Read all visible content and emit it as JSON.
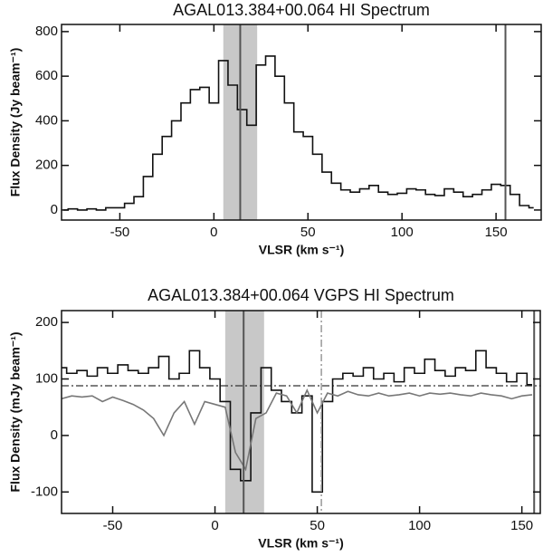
{
  "chart_data": [
    {
      "type": "line",
      "title": "AGAL013.384+00.064 HI Spectrum",
      "xlabel": "VLSR (km s⁻¹)",
      "ylabel": "Flux Density (Jy beam⁻¹)",
      "xlim": [
        -81,
        174
      ],
      "ylim": [
        -45,
        832
      ],
      "xticks": [
        -50,
        0,
        50,
        100,
        150
      ],
      "yticks": [
        0,
        200,
        400,
        600,
        800
      ],
      "shaded_region": [
        5,
        23
      ],
      "vlines": [
        14,
        155
      ],
      "x": [
        -80,
        -75,
        -70,
        -65,
        -60,
        -55,
        -50,
        -45,
        -40,
        -35,
        -30,
        -25,
        -20,
        -15,
        -10,
        -5,
        0,
        5,
        10,
        15,
        20,
        25,
        30,
        35,
        40,
        45,
        50,
        55,
        60,
        65,
        70,
        75,
        80,
        85,
        90,
        95,
        100,
        105,
        110,
        115,
        120,
        125,
        130,
        135,
        140,
        145,
        150,
        155,
        160,
        165,
        170
      ],
      "series": [
        {
          "color": "#111111",
          "style": "steps",
          "values": [
            0,
            5,
            0,
            5,
            0,
            10,
            10,
            30,
            60,
            150,
            250,
            330,
            400,
            480,
            540,
            550,
            480,
            670,
            560,
            450,
            380,
            650,
            690,
            600,
            480,
            350,
            330,
            250,
            170,
            120,
            90,
            80,
            95,
            110,
            80,
            70,
            75,
            95,
            90,
            70,
            65,
            95,
            80,
            60,
            70,
            90,
            115,
            110,
            70,
            20,
            10
          ]
        }
      ]
    },
    {
      "type": "line",
      "title": "AGAL013.384+00.064  VGPS HI Spectrum",
      "xlabel": "VLSR (km s⁻¹)",
      "ylabel": "Flux Density (mJy beam⁻¹)",
      "xlim": [
        -75,
        159
      ],
      "ylim": [
        -138,
        221
      ],
      "xticks": [
        -50,
        0,
        50,
        100,
        150
      ],
      "yticks": [
        -100,
        0,
        100,
        200
      ],
      "shaded_region": [
        5,
        24
      ],
      "vlines": [
        14,
        156
      ],
      "dashed_vlines": [
        52
      ],
      "hlines": [
        88
      ],
      "x": [
        -75,
        -70,
        -65,
        -60,
        -55,
        -50,
        -45,
        -40,
        -35,
        -30,
        -25,
        -20,
        -15,
        -10,
        -5,
        0,
        5,
        10,
        15,
        20,
        25,
        30,
        35,
        40,
        45,
        50,
        55,
        60,
        65,
        70,
        75,
        80,
        85,
        90,
        95,
        100,
        105,
        110,
        115,
        120,
        125,
        130,
        135,
        140,
        145,
        150,
        155
      ],
      "series": [
        {
          "color": "#111111",
          "style": "steps",
          "values": [
            120,
            110,
            115,
            105,
            120,
            110,
            125,
            115,
            110,
            120,
            140,
            100,
            110,
            150,
            120,
            100,
            60,
            -60,
            -80,
            40,
            120,
            80,
            60,
            40,
            70,
            -100,
            60,
            100,
            110,
            105,
            120,
            100,
            110,
            95,
            120,
            110,
            135,
            115,
            105,
            120,
            115,
            150,
            120,
            110,
            95,
            110,
            90
          ]
        },
        {
          "color": "#777777",
          "style": "smooth",
          "values": [
            65,
            70,
            68,
            70,
            60,
            68,
            62,
            55,
            45,
            30,
            0,
            40,
            60,
            20,
            60,
            55,
            50,
            -30,
            -60,
            30,
            40,
            75,
            70,
            40,
            80,
            40,
            75,
            70,
            78,
            72,
            70,
            75,
            70,
            72,
            75,
            70,
            75,
            73,
            75,
            72,
            70,
            75,
            72,
            70,
            65,
            70,
            72
          ]
        }
      ]
    }
  ]
}
